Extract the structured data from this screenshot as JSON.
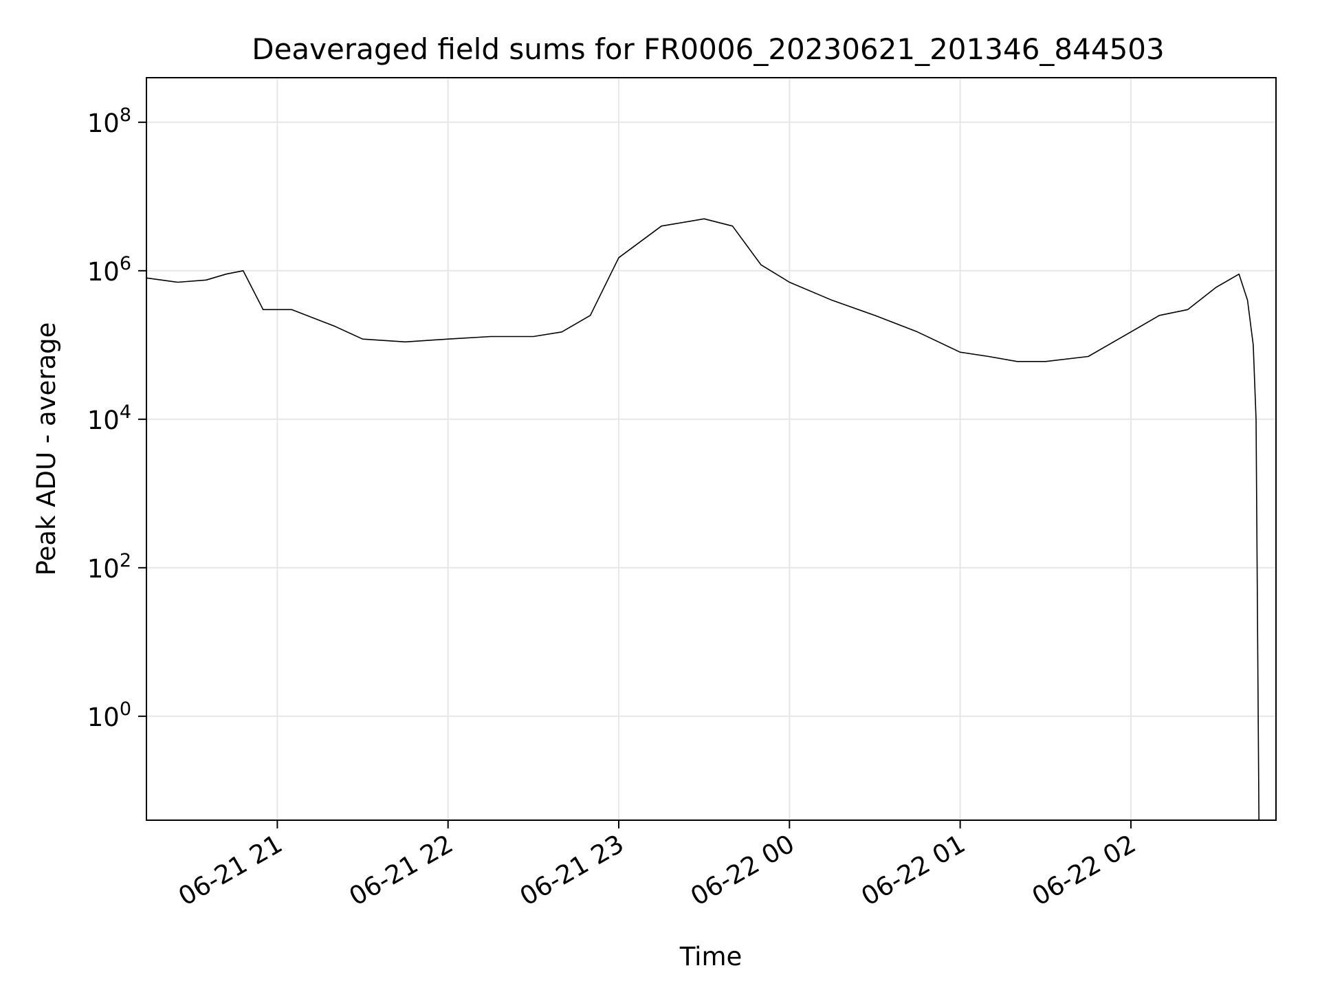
{
  "chart_data": {
    "type": "line",
    "title": "Deaveraged field sums for FR0006_20230621_201346_844503",
    "xlabel": "Time",
    "ylabel": "Peak ADU - average",
    "yscale": "log",
    "grid": true,
    "x_ticks": [
      "06-21 21",
      "06-21 22",
      "06-21 23",
      "06-22 00",
      "06-22 01",
      "06-22 02"
    ],
    "y_ticks": [
      {
        "exp": 8,
        "base": "10",
        "sup": "8"
      },
      {
        "exp": 6,
        "base": "10",
        "sup": "6"
      },
      {
        "exp": 4,
        "base": "10",
        "sup": "4"
      },
      {
        "exp": 2,
        "base": "10",
        "sup": "2"
      },
      {
        "exp": 0,
        "base": "10",
        "sup": "0"
      }
    ],
    "xlim": [
      "2023-06-21 20:14",
      "2023-06-22 02:51"
    ],
    "ylim_log10": [
      -1.4,
      8.6
    ],
    "series": [
      {
        "color": "#000000",
        "x": [
          "2023-06-21 20:14",
          "2023-06-21 20:25",
          "2023-06-21 20:35",
          "2023-06-21 20:42",
          "2023-06-21 20:48",
          "2023-06-21 20:55",
          "2023-06-21 21:05",
          "2023-06-21 21:20",
          "2023-06-21 21:30",
          "2023-06-21 21:45",
          "2023-06-21 22:00",
          "2023-06-21 22:15",
          "2023-06-21 22:30",
          "2023-06-21 22:40",
          "2023-06-21 22:50",
          "2023-06-21 23:00",
          "2023-06-21 23:15",
          "2023-06-21 23:30",
          "2023-06-21 23:40",
          "2023-06-21 23:50",
          "2023-06-22 00:00",
          "2023-06-22 00:15",
          "2023-06-22 00:30",
          "2023-06-22 00:45",
          "2023-06-22 01:00",
          "2023-06-22 01:10",
          "2023-06-22 01:20",
          "2023-06-22 01:30",
          "2023-06-22 01:45",
          "2023-06-22 02:00",
          "2023-06-22 02:10",
          "2023-06-22 02:20",
          "2023-06-22 02:30",
          "2023-06-22 02:38",
          "2023-06-22 02:41",
          "2023-06-22 02:43",
          "2023-06-22 02:44",
          "2023-06-22 02:45"
        ],
        "y": [
          800000,
          700000,
          750000,
          900000,
          1000000,
          300000,
          300000,
          180000,
          120000,
          110000,
          120000,
          130000,
          130000,
          150000,
          250000,
          1500000,
          4000000,
          5000000,
          4000000,
          1200000,
          700000,
          400000,
          250000,
          150000,
          80000,
          70000,
          60000,
          60000,
          70000,
          150000,
          250000,
          300000,
          600000,
          900000,
          400000,
          100000,
          10000,
          0.03
        ]
      }
    ]
  }
}
